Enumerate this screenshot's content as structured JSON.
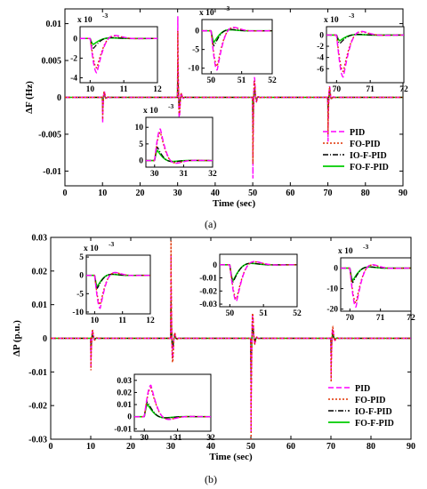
{
  "colors": {
    "PID": "#ff00ff",
    "FO-PID": "#e03000",
    "IO-F-PID": "#000000",
    "FO-F-PID": "#00cc00",
    "axis": "#000000"
  },
  "legend_items": [
    "PID",
    "FO-PID",
    "IO-F-PID",
    "FO-F-PID"
  ],
  "chart_data": [
    {
      "id": "a",
      "type": "line",
      "caption": "(a)",
      "xlabel": "Time (sec)",
      "ylabel": "ΔF (Hz)",
      "xlim": [
        0,
        90
      ],
      "ylim": [
        -0.012,
        0.012
      ],
      "xticks": [
        0,
        10,
        20,
        30,
        40,
        50,
        60,
        70,
        80,
        90
      ],
      "xtick_labels": [
        "0",
        "10",
        "20",
        "30",
        "40",
        "50",
        "60",
        "70",
        "80",
        "90"
      ],
      "yticks": [
        -0.01,
        -0.005,
        0,
        0.005,
        0.01
      ],
      "ytick_labels": [
        "-0.01",
        "-0.005",
        "0",
        "0.005",
        "0.01"
      ],
      "legend": "bottom-right",
      "events": [
        {
          "t": 10,
          "peaks": {
            "PID": -0.0035,
            "FO-PID": -0.003,
            "IO-F-PID": -0.002,
            "FO-F-PID": -0.0015
          }
        },
        {
          "t": 30,
          "peaks": {
            "PID": 0.011,
            "FO-PID": 0.009,
            "IO-F-PID": 0.005,
            "FO-F-PID": 0.004
          }
        },
        {
          "t": 50,
          "peaks": {
            "PID": -0.011,
            "FO-PID": -0.009,
            "IO-F-PID": -0.005,
            "FO-F-PID": -0.004
          }
        },
        {
          "t": 70,
          "peaks": {
            "PID": -0.006,
            "FO-PID": -0.005,
            "IO-F-PID": -0.003,
            "FO-F-PID": -0.002
          }
        }
      ],
      "insets": [
        {
          "exponent": "x 10",
          "power": "-3",
          "xlim": [
            9.7,
            12
          ],
          "ylim": [
            -4.5,
            1.2
          ],
          "xticks": [
            10,
            11,
            12
          ],
          "xtick_labels": [
            "10",
            "11",
            "12"
          ],
          "yticks": [
            -4,
            -2,
            0
          ],
          "ytick_labels": [
            "-4",
            "-2",
            "0"
          ],
          "t0": 10,
          "peaks": {
            "PID": -3.5,
            "FO-PID": -3.0,
            "IO-F-PID": -1.0,
            "FO-F-PID": -0.6
          }
        },
        {
          "exponent": "x 10",
          "power": "-3",
          "xlim": [
            49.7,
            52
          ],
          "ylim": [
            -11.5,
            3
          ],
          "xticks": [
            50,
            51,
            52
          ],
          "xtick_labels": [
            "50",
            "51",
            "52"
          ],
          "yticks": [
            -10,
            -5,
            0
          ],
          "ytick_labels": [
            "-10",
            "-5",
            "0"
          ],
          "t0": 50,
          "peaks": {
            "PID": -10.5,
            "FO-PID": -9.5,
            "IO-F-PID": -4.0,
            "FO-F-PID": -3.0
          }
        },
        {
          "exponent": "x 10",
          "power": "-3",
          "xlim": [
            69.7,
            72
          ],
          "ylim": [
            -8.5,
            1.5
          ],
          "xticks": [
            70,
            71,
            72
          ],
          "xtick_labels": [
            "70",
            "71",
            "72"
          ],
          "yticks": [
            -6,
            -4,
            -2,
            0
          ],
          "ytick_labels": [
            "-6",
            "-4",
            "-2",
            "0"
          ],
          "t0": 70,
          "peaks": {
            "PID": -7.5,
            "FO-PID": -6.5,
            "IO-F-PID": -1.5,
            "FO-F-PID": -1.0
          }
        },
        {
          "exponent": "x 10",
          "power": "-3",
          "xlim": [
            29.7,
            32
          ],
          "ylim": [
            -2,
            13
          ],
          "xticks": [
            30,
            31,
            32
          ],
          "xtick_labels": [
            "30",
            "31",
            "32"
          ],
          "yticks": [
            0,
            5,
            10
          ],
          "ytick_labels": [
            "0",
            "5",
            "10"
          ],
          "t0": 30,
          "peaks": {
            "PID": 9.5,
            "FO-PID": 8.5,
            "IO-F-PID": 4.0,
            "FO-F-PID": 3.0
          }
        }
      ]
    },
    {
      "id": "b",
      "type": "line",
      "caption": "(b)",
      "xlabel": "Time (sec)",
      "ylabel": "ΔP (p.u.)",
      "xlim": [
        0,
        90
      ],
      "ylim": [
        -0.03,
        0.03
      ],
      "xticks": [
        0,
        10,
        20,
        30,
        40,
        50,
        60,
        70,
        80,
        90
      ],
      "xtick_labels": [
        "0",
        "10",
        "20",
        "30",
        "40",
        "50",
        "60",
        "70",
        "80",
        "90"
      ],
      "yticks": [
        -0.03,
        -0.02,
        -0.01,
        0,
        0.01,
        0.02,
        0.03
      ],
      "ytick_labels": [
        "-0.03",
        "-0.02",
        "-0.01",
        "0",
        "0.01",
        "0.02",
        "0.03"
      ],
      "legend": "bottom-right",
      "events": [
        {
          "t": 10,
          "peaks": {
            "PID": -0.009,
            "FO-PID": -0.0095,
            "IO-F-PID": -0.004,
            "FO-F-PID": -0.0035
          }
        },
        {
          "t": 30,
          "peaks": {
            "PID": 0.025,
            "FO-PID": 0.029,
            "IO-F-PID": 0.012,
            "FO-F-PID": 0.01
          }
        },
        {
          "t": 50,
          "peaks": {
            "PID": -0.028,
            "FO-PID": -0.03,
            "IO-F-PID": -0.014,
            "FO-F-PID": -0.013
          }
        },
        {
          "t": 70,
          "peaks": {
            "PID": -0.012,
            "FO-PID": -0.013,
            "IO-F-PID": -0.005,
            "FO-F-PID": -0.004
          }
        }
      ],
      "insets": [
        {
          "exponent": "x 10",
          "power": "-3",
          "xlim": [
            9.7,
            12
          ],
          "ylim": [
            -10.5,
            5.5
          ],
          "xticks": [
            10,
            11,
            12
          ],
          "xtick_labels": [
            "10",
            "11",
            "12"
          ],
          "yticks": [
            -10,
            -5,
            0,
            5
          ],
          "ytick_labels": [
            "-10",
            "-5",
            "0",
            "5"
          ],
          "t0": 10,
          "peaks": {
            "PID": -9.0,
            "FO-PID": -8.0,
            "IO-F-PID": -3.5,
            "FO-F-PID": -3.0
          }
        },
        {
          "exponent": "",
          "power": "",
          "xlim": [
            49.7,
            52
          ],
          "ylim": [
            -0.032,
            0.008
          ],
          "xticks": [
            50,
            51,
            52
          ],
          "xtick_labels": [
            "50",
            "51",
            "52"
          ],
          "yticks": [
            -0.03,
            -0.02,
            -0.01,
            0
          ],
          "ytick_labels": [
            "-0.03",
            "-0.02",
            "-0.01",
            "0"
          ],
          "t0": 50,
          "peaks": {
            "PID": -0.028,
            "FO-PID": -0.026,
            "IO-F-PID": -0.013,
            "FO-F-PID": -0.012
          }
        },
        {
          "exponent": "x 10",
          "power": "-3",
          "xlim": [
            69.7,
            72
          ],
          "ylim": [
            -21,
            5
          ],
          "xticks": [
            70,
            71,
            72
          ],
          "xtick_labels": [
            "70",
            "71",
            "72"
          ],
          "yticks": [
            -20,
            -10,
            0
          ],
          "ytick_labels": [
            "-20",
            "-10",
            "0"
          ],
          "t0": 70,
          "peaks": {
            "PID": -19.0,
            "FO-PID": -17.0,
            "IO-F-PID": -7.0,
            "FO-F-PID": -6.0
          }
        },
        {
          "exponent": "",
          "power": "",
          "xlim": [
            29.7,
            32
          ],
          "ylim": [
            -0.012,
            0.035
          ],
          "xticks": [
            30,
            31,
            32
          ],
          "xtick_labels": [
            "30",
            "31",
            "32"
          ],
          "yticks": [
            -0.01,
            0,
            0.01,
            0.02,
            0.03
          ],
          "ytick_labels": [
            "-0.01",
            "0",
            "0.01",
            "0.02",
            "0.03"
          ],
          "t0": 30,
          "peaks": {
            "PID": 0.026,
            "FO-PID": 0.024,
            "IO-F-PID": 0.012,
            "FO-F-PID": 0.01
          }
        }
      ]
    }
  ]
}
